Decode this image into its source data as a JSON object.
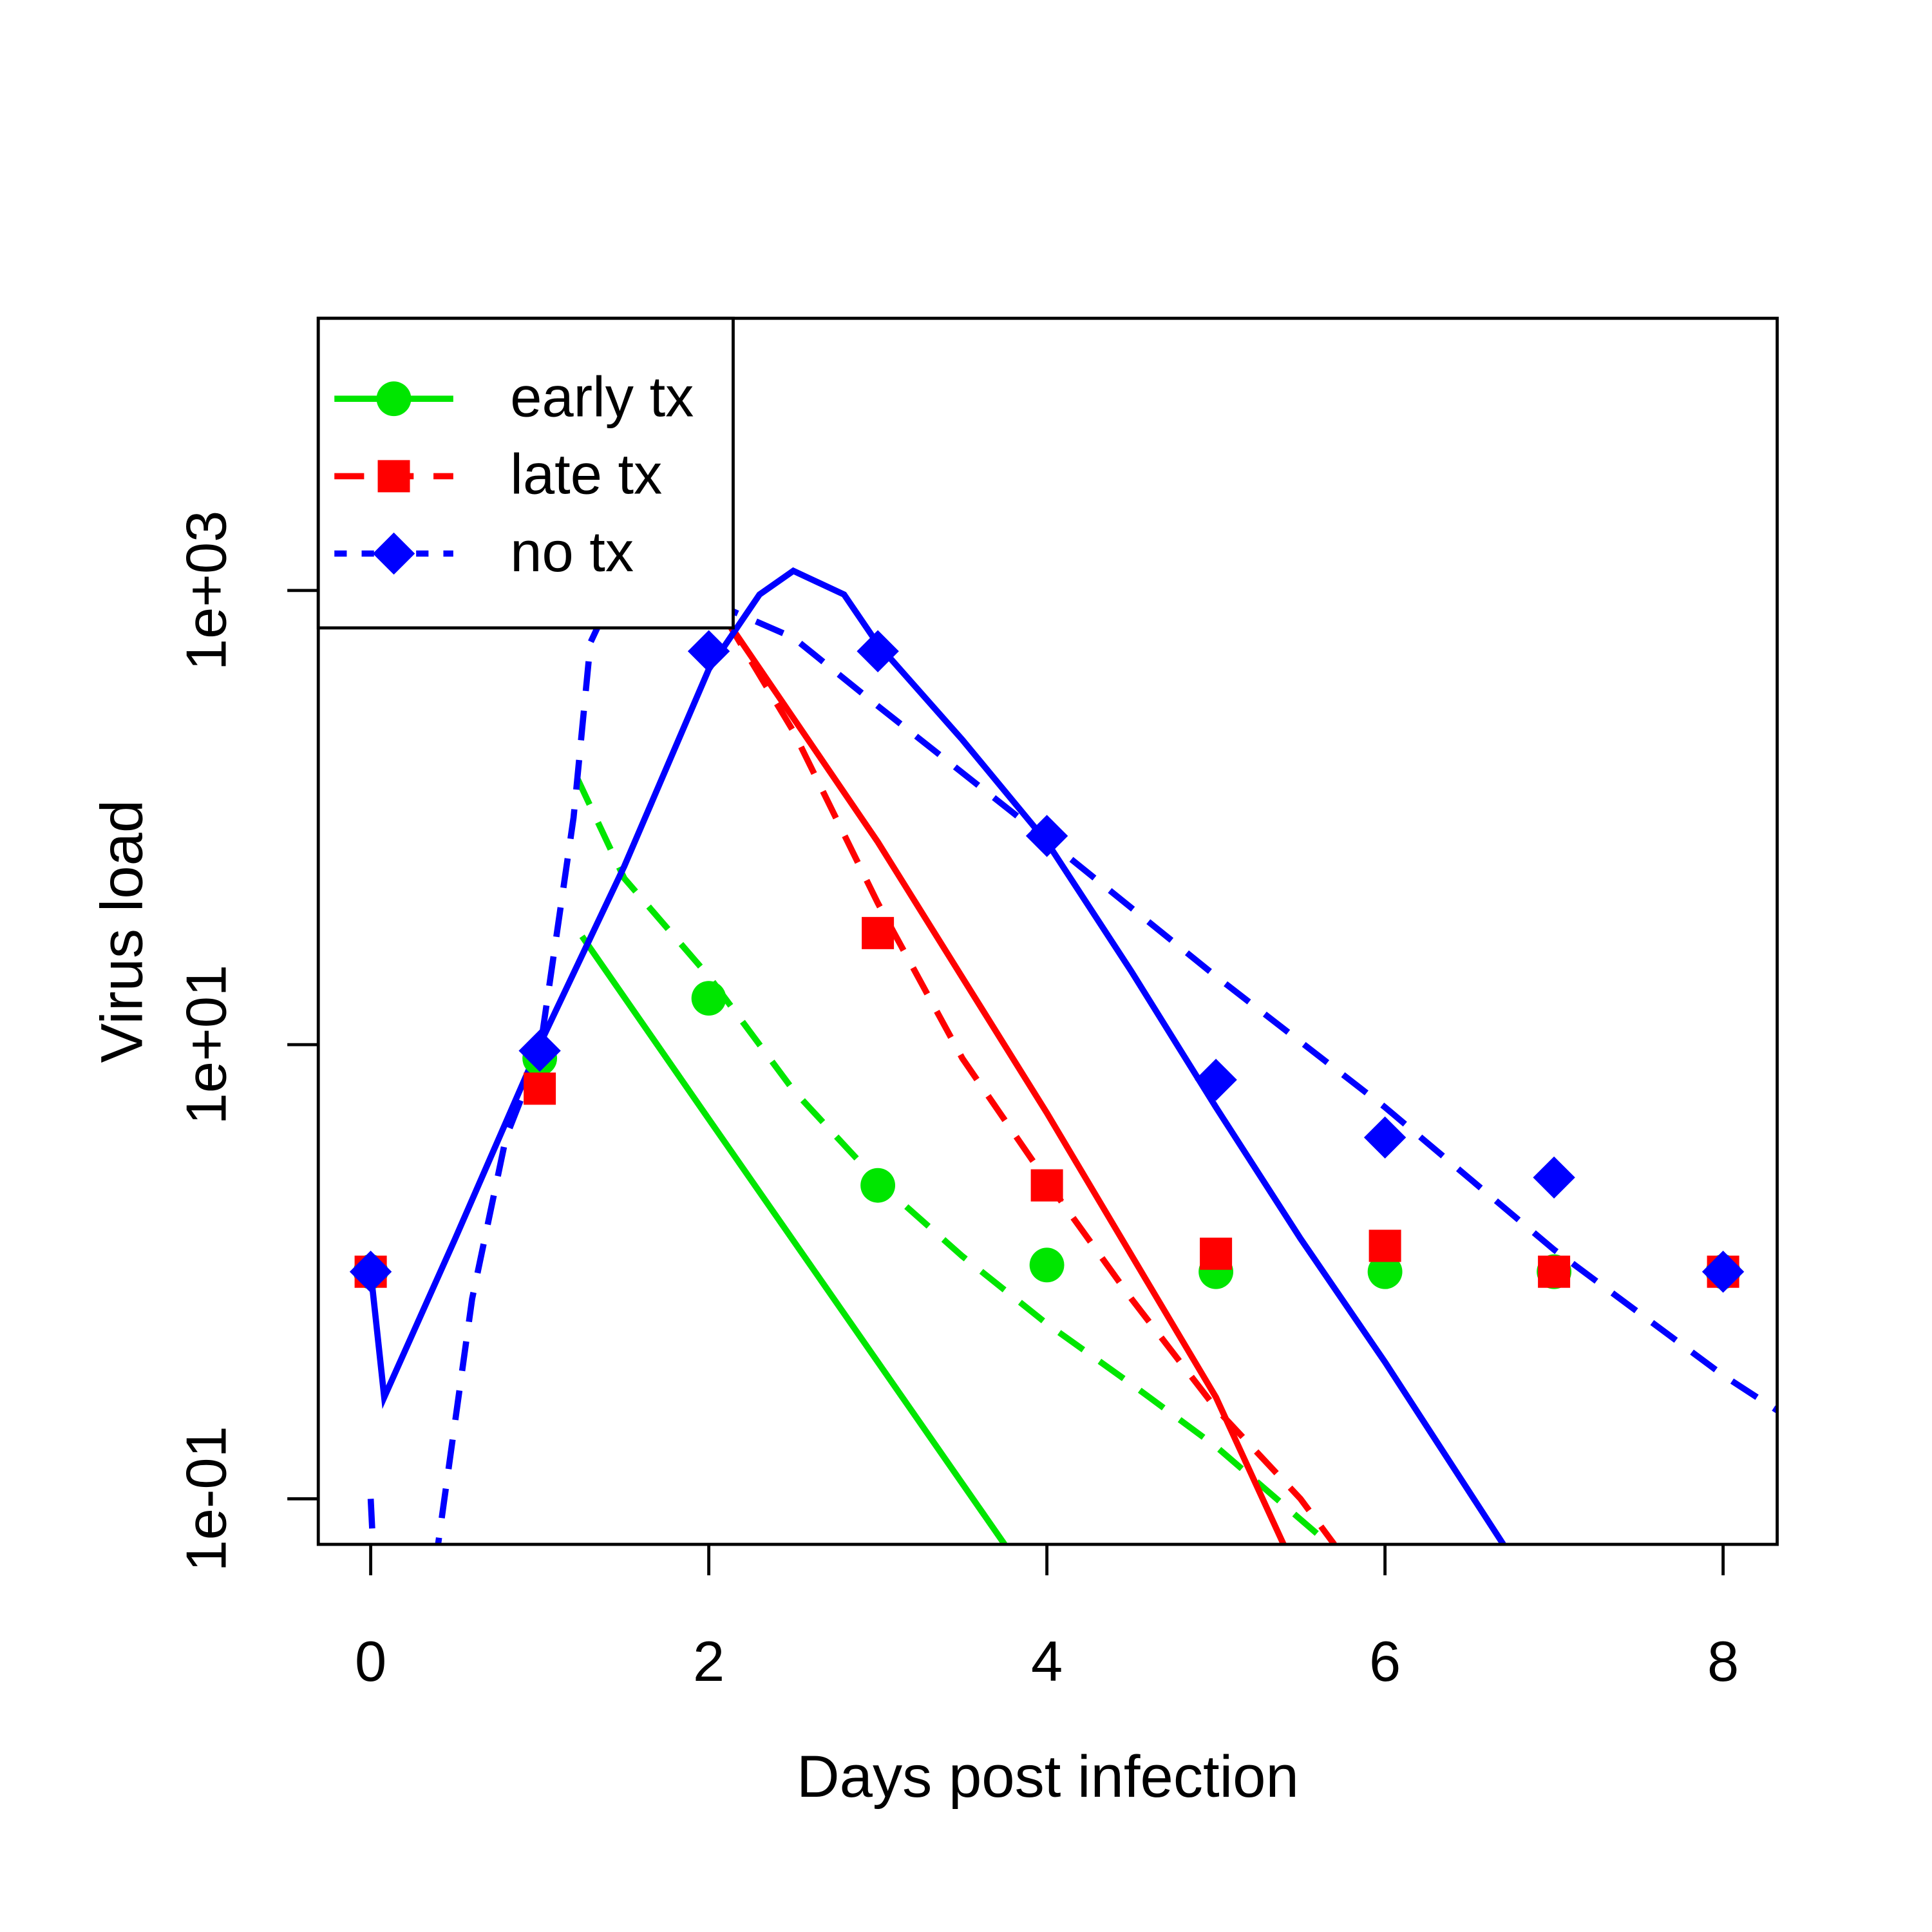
{
  "chart_data": {
    "type": "line",
    "xlabel": "Days post infection",
    "ylabel": "Virus load",
    "xlim": [
      -0.31,
      8.32
    ],
    "ylim": [
      0.063,
      15800
    ],
    "log_y": true,
    "xticks": [
      0,
      2,
      4,
      6,
      8
    ],
    "yticks": [
      {
        "value": 0.1,
        "label": "1e-01"
      },
      {
        "value": 10,
        "label": "1e+01"
      },
      {
        "value": 1000,
        "label": "1e+03"
      }
    ],
    "legend": "top-left",
    "series": [
      {
        "name": "early tx",
        "color": "#00e600",
        "marker": "circle",
        "legend_style": "solid",
        "x": [
          0,
          1,
          2,
          3,
          4,
          5,
          6,
          7,
          8
        ],
        "values": [
          1,
          8.7,
          16,
          2.4,
          1.07,
          1,
          1,
          1,
          1
        ],
        "lines": [
          {
            "style": "solid",
            "x": [
              1.25,
              2,
              3,
              3.75
            ],
            "values": [
              30,
              4.7,
              0.4,
              0.063
            ]
          },
          {
            "style": "dashed",
            "x": [
              1.22,
              1.5,
              2,
              2.5,
              3,
              3.5,
              4,
              4.5,
              5,
              5.6
            ],
            "values": [
              150,
              54,
              20,
              6.3,
              2.5,
              1.17,
              0.59,
              0.32,
              0.17,
              0.07
            ]
          }
        ]
      },
      {
        "name": "late tx",
        "color": "#ff0000",
        "marker": "square",
        "legend_style": "dashed",
        "x": [
          0,
          1,
          2,
          3,
          4,
          5,
          6,
          7,
          8
        ],
        "values": [
          1,
          6.4,
          1400,
          31,
          2.4,
          1.2,
          1.3,
          1,
          1
        ],
        "lines": [
          {
            "style": "solid",
            "x": [
              2.1,
              3,
              4,
              5,
              5.4
            ],
            "values": [
              750,
              78,
              5,
              0.28,
              0.063
            ]
          },
          {
            "style": "dashed",
            "x": [
              2.1,
              2.5,
              3,
              3.5,
              4,
              4.5,
              5,
              5.5,
              5.7
            ],
            "values": [
              750,
              240,
              42,
              8.7,
              2.5,
              0.76,
              0.25,
              0.1,
              0.063
            ]
          }
        ]
      },
      {
        "name": "no tx",
        "color": "#0000ff",
        "marker": "diamond",
        "legend_style": "dotted",
        "x": [
          0,
          1,
          2,
          3,
          4,
          5,
          6,
          7,
          8
        ],
        "values": [
          1,
          9.4,
          540,
          540,
          83,
          7,
          3.9,
          2.6,
          1
        ],
        "lines": [
          {
            "style": "solid",
            "x": [
              0,
              0.08,
              0.5,
              1,
              1.5,
              2,
              2.3,
              2.5,
              2.8,
              3,
              3.5,
              4,
              4.5,
              5,
              5.5,
              6,
              6.7
            ],
            "values": [
              1,
              0.28,
              1.4,
              10,
              61,
              450,
              960,
              1220,
              960,
              580,
              220,
              78,
              21,
              5.3,
              1.4,
              0.4,
              0.063
            ]
          },
          {
            "style": "dashed",
            "x": [
              0,
              0.02,
              0.2,
              0.38,
              0.6,
              0.8,
              1,
              1.2,
              1.3,
              1.4,
              1.7,
              2,
              2.5,
              3,
              4,
              5,
              6,
              7,
              8,
              8.32
            ],
            "values": [
              0.1,
              0.05,
              null,
              0.05,
              0.76,
              3.9,
              9.3,
              100,
              590,
              850,
              1050,
              900,
              620,
              310,
              80,
              20,
              5.3,
              1.25,
              0.35,
              0.245
            ]
          }
        ]
      }
    ]
  }
}
